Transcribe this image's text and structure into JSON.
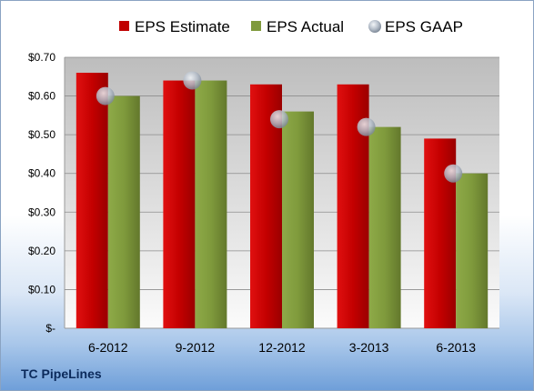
{
  "chart_data": {
    "type": "bar",
    "categories": [
      "6-2012",
      "9-2012",
      "12-2012",
      "3-2013",
      "6-2013"
    ],
    "series": [
      {
        "name": "EPS Estimate",
        "kind": "bar",
        "color": "#c00000",
        "values": [
          0.66,
          0.64,
          0.63,
          0.63,
          0.49
        ]
      },
      {
        "name": "EPS Actual",
        "kind": "bar",
        "color": "#7f9a3c",
        "values": [
          0.6,
          0.64,
          0.56,
          0.52,
          0.4
        ]
      },
      {
        "name": "EPS GAAP",
        "kind": "marker",
        "color": "#a8b1bd",
        "values": [
          0.6,
          0.64,
          0.54,
          0.52,
          0.4
        ]
      }
    ],
    "ylim": [
      0,
      0.7
    ],
    "yticks": [
      0,
      0.1,
      0.2,
      0.3,
      0.4,
      0.5,
      0.6,
      0.7
    ],
    "ytick_labels": [
      "$-",
      "$0.10",
      "$0.20",
      "$0.30",
      "$0.40",
      "$0.50",
      "$0.60",
      "$0.70"
    ],
    "grid": true,
    "legend_position": "top"
  },
  "footer": {
    "company": "TC PipeLines"
  }
}
